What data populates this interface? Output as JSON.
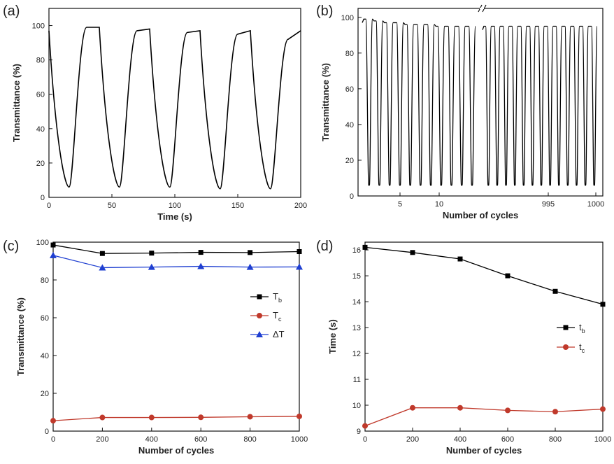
{
  "panels": {
    "a": {
      "label": "(a)"
    },
    "b": {
      "label": "(b)"
    },
    "c": {
      "label": "(c)"
    },
    "d": {
      "label": "(d)"
    }
  },
  "chart_data": [
    {
      "id": "a",
      "type": "line",
      "xlabel": "Time (s)",
      "ylabel": "Transmittance (%)",
      "xlim": [
        0,
        200
      ],
      "ylim": [
        0,
        110
      ],
      "xticks": [
        0,
        50,
        100,
        150,
        200
      ],
      "yticks": [
        0,
        20,
        40,
        60,
        80,
        100
      ],
      "series": [
        {
          "name": "transmittance",
          "color": "#000000",
          "x": [
            0,
            16,
            30,
            40,
            56,
            70,
            80,
            96,
            110,
            120,
            136,
            150,
            160,
            176,
            190,
            200
          ],
          "y": [
            97,
            6,
            99,
            99,
            6,
            97,
            98,
            6,
            96,
            97,
            5,
            95,
            97,
            5,
            92,
            97
          ]
        }
      ]
    },
    {
      "id": "b",
      "type": "line",
      "xlabel": "Number of cycles",
      "ylabel": "Transmittance (%)",
      "ylim": [
        0,
        105
      ],
      "yticks": [
        0,
        20,
        40,
        60,
        80,
        100
      ],
      "xticks_left": [
        "5",
        "10"
      ],
      "xticks_right": [
        "995",
        "1000"
      ],
      "left_cycles": 11,
      "right_cycles": 13,
      "left_high": [
        99,
        98,
        97,
        97,
        96,
        96,
        96,
        95,
        95,
        95,
        95
      ],
      "right_high": [
        95,
        95,
        95,
        95,
        95,
        95,
        95,
        95,
        95,
        95,
        95,
        95,
        95
      ],
      "low": 6,
      "axis_break": "//"
    },
    {
      "id": "c",
      "type": "line",
      "xlabel": "Number of cycles",
      "ylabel": "Transmittance (%)",
      "xlim": [
        0,
        1000
      ],
      "ylim": [
        0,
        100
      ],
      "xticks": [
        0,
        200,
        400,
        600,
        800,
        1000
      ],
      "yticks": [
        0,
        20,
        40,
        60,
        80,
        100
      ],
      "categories": [
        0,
        200,
        400,
        600,
        800,
        1000
      ],
      "series": [
        {
          "name": "T",
          "sub": "b",
          "marker": "square",
          "color": "#000000",
          "values": [
            98.5,
            94,
            94.2,
            94.6,
            94.5,
            95
          ]
        },
        {
          "name": "T",
          "sub": "c",
          "marker": "circle",
          "color": "#c0392b",
          "values": [
            5.5,
            7.2,
            7.2,
            7.3,
            7.6,
            7.8
          ]
        },
        {
          "name": "ΔT",
          "sub": "",
          "marker": "triangle",
          "color": "#1f3fd1",
          "values": [
            93,
            86.5,
            86.8,
            87.2,
            86.8,
            86.9
          ]
        }
      ]
    },
    {
      "id": "d",
      "type": "line",
      "xlabel": "Number of cycles",
      "ylabel": "Time (s)",
      "xlim": [
        0,
        1000
      ],
      "ylim": [
        9,
        16.3
      ],
      "xticks": [
        0,
        200,
        400,
        600,
        800,
        1000
      ],
      "yticks": [
        9,
        10,
        11,
        12,
        13,
        14,
        15,
        16
      ],
      "categories": [
        0,
        200,
        400,
        600,
        800,
        1000
      ],
      "series": [
        {
          "name": "t",
          "sub": "b",
          "marker": "square",
          "color": "#000000",
          "values": [
            16.1,
            15.9,
            15.65,
            15.0,
            14.4,
            13.9
          ]
        },
        {
          "name": "t",
          "sub": "c",
          "marker": "circle",
          "color": "#c0392b",
          "values": [
            9.2,
            9.9,
            9.9,
            9.8,
            9.75,
            9.85
          ]
        }
      ]
    }
  ]
}
